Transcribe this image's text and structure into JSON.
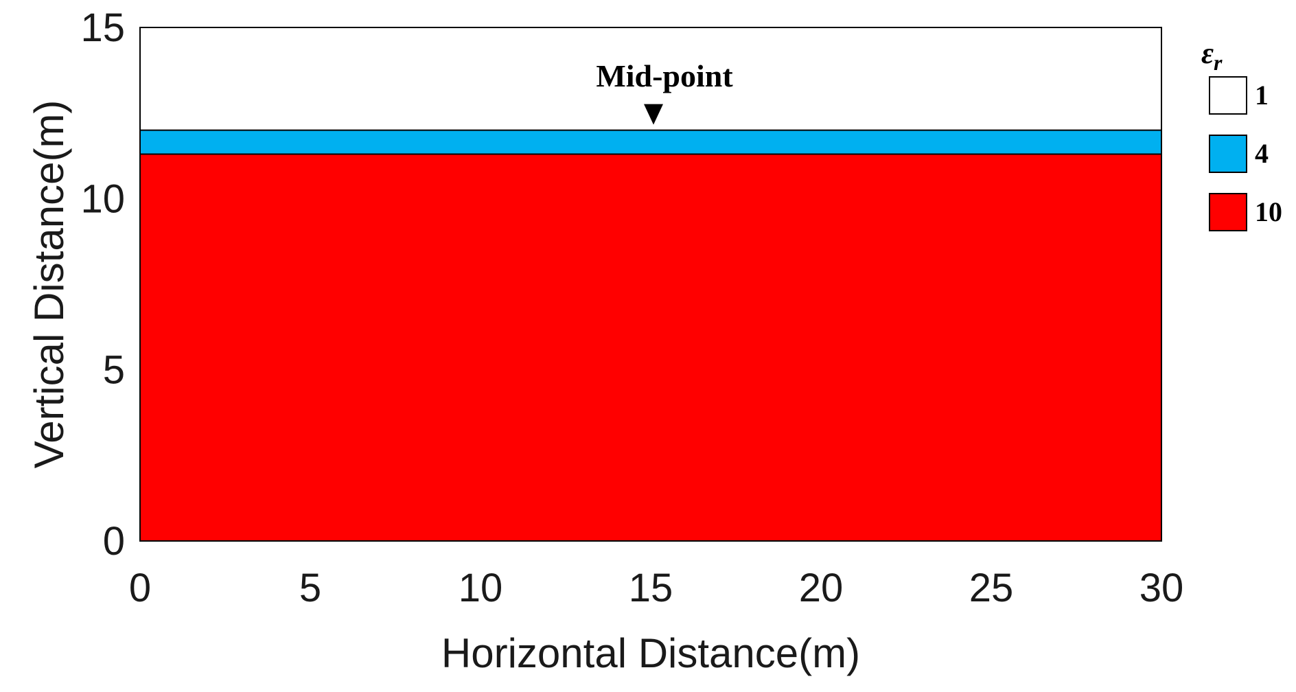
{
  "chart_data": {
    "type": "area",
    "xlabel": "Horizontal Distance(m)",
    "ylabel": "Vertical Distance(m)",
    "xlim": [
      0,
      30
    ],
    "ylim": [
      0,
      15
    ],
    "xticks": [
      "0",
      "5",
      "10",
      "15",
      "20",
      "25",
      "30"
    ],
    "yticks": [
      "0",
      "5",
      "10",
      "15"
    ],
    "grid": false,
    "legend_position": "right",
    "legend_title_symbol": "ε",
    "legend_title_subscript": "r",
    "layers": [
      {
        "name": "1",
        "y_bottom": 12.0,
        "y_top": 15.0,
        "color": "#ffffff"
      },
      {
        "name": "4",
        "y_bottom": 11.3,
        "y_top": 12.0,
        "color": "#00b0f0"
      },
      {
        "name": "10",
        "y_bottom": 0.0,
        "y_top": 11.3,
        "color": "#ff0000"
      }
    ],
    "annotations": [
      {
        "text": "Mid-point",
        "x": 15,
        "y": 12.0,
        "marker": "down-triangle"
      }
    ]
  }
}
